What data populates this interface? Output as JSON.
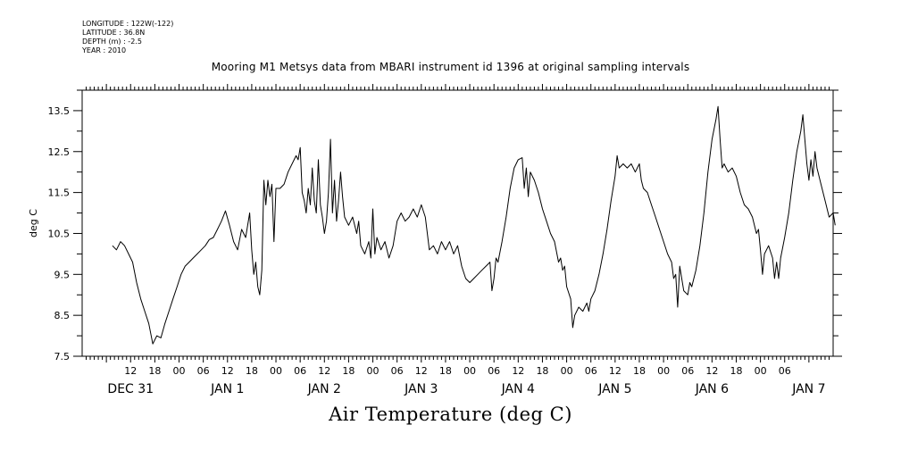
{
  "header": {
    "longitude": "LONGITUDE : 122W(-122)",
    "latitude": "LATITUDE : 36.8N",
    "depth": "DEPTH (m) : -2.5",
    "year": "YEAR : 2010"
  },
  "chart_data": {
    "type": "line",
    "title": "Mooring M1 Metsys data from MBARI instrument id 1396 at original sampling intervals",
    "ylabel": "deg C",
    "xlabel": "",
    "footer_title": "Air Temperature (deg C)",
    "ylim": [
      7.5,
      14.0
    ],
    "yticks": [
      "7.5",
      "8.5",
      "9.5",
      "10.5",
      "11.5",
      "12.5",
      "13.5"
    ],
    "xlim_hours": [
      6,
      174
    ],
    "xtick_labels": [
      "12",
      "18",
      "00",
      "06",
      "12",
      "18",
      "00",
      "06",
      "12",
      "18",
      "00",
      "06",
      "12",
      "18",
      "00",
      "06",
      "12",
      "18",
      "00",
      "06",
      "12",
      "18",
      "00",
      "06",
      "12",
      "18",
      "00",
      "06"
    ],
    "day_labels": [
      "DEC 31",
      "JAN 1",
      "JAN 2",
      "JAN 3",
      "JAN 4",
      "JAN 5",
      "JAN 6",
      "JAN 7"
    ],
    "grid": false,
    "series": [
      {
        "points": [
          [
            7.5,
            10.2
          ],
          [
            8.5,
            10.1
          ],
          [
            9.5,
            10.3
          ],
          [
            10.5,
            10.2
          ],
          [
            11.5,
            10.0
          ],
          [
            12.5,
            9.8
          ],
          [
            13.5,
            9.3
          ],
          [
            14.5,
            8.9
          ],
          [
            15.5,
            8.6
          ],
          [
            16.5,
            8.3
          ],
          [
            17.5,
            7.8
          ],
          [
            18.5,
            8.0
          ],
          [
            19.5,
            7.95
          ],
          [
            20.5,
            8.3
          ],
          [
            21.5,
            8.6
          ],
          [
            22.5,
            8.9
          ],
          [
            23.5,
            9.2
          ],
          [
            24.5,
            9.5
          ],
          [
            25.5,
            9.7
          ],
          [
            26.5,
            9.8
          ],
          [
            27.5,
            9.9
          ],
          [
            28.5,
            10.0
          ],
          [
            29.5,
            10.1
          ],
          [
            30.5,
            10.2
          ],
          [
            31.5,
            10.35
          ],
          [
            32.5,
            10.4
          ],
          [
            33.5,
            10.6
          ],
          [
            34.5,
            10.8
          ],
          [
            35.5,
            11.05
          ],
          [
            36.5,
            10.7
          ],
          [
            37.5,
            10.3
          ],
          [
            38.5,
            10.1
          ],
          [
            39.5,
            10.6
          ],
          [
            40.5,
            10.4
          ],
          [
            41.5,
            11.0
          ],
          [
            42.0,
            10.1
          ],
          [
            42.5,
            9.5
          ],
          [
            43.0,
            9.8
          ],
          [
            43.5,
            9.2
          ],
          [
            44.0,
            9.0
          ],
          [
            44.5,
            9.6
          ],
          [
            45.0,
            11.8
          ],
          [
            45.5,
            11.2
          ],
          [
            46.0,
            11.8
          ],
          [
            46.5,
            11.4
          ],
          [
            47.0,
            11.7
          ],
          [
            47.5,
            10.3
          ],
          [
            48.0,
            11.6
          ],
          [
            49.0,
            11.6
          ],
          [
            50.0,
            11.7
          ],
          [
            51.0,
            12.0
          ],
          [
            52.0,
            12.2
          ],
          [
            53.0,
            12.4
          ],
          [
            53.5,
            12.3
          ],
          [
            54.0,
            12.6
          ],
          [
            54.5,
            11.5
          ],
          [
            55.0,
            11.3
          ],
          [
            55.5,
            11.0
          ],
          [
            56.0,
            11.6
          ],
          [
            56.5,
            11.2
          ],
          [
            57.0,
            12.1
          ],
          [
            57.5,
            11.3
          ],
          [
            58.0,
            11.0
          ],
          [
            58.5,
            12.3
          ],
          [
            59.0,
            11.2
          ],
          [
            59.5,
            10.9
          ],
          [
            60.0,
            10.5
          ],
          [
            60.5,
            10.8
          ],
          [
            61.0,
            11.5
          ],
          [
            61.5,
            12.8
          ],
          [
            62.0,
            11.0
          ],
          [
            62.5,
            11.8
          ],
          [
            63.0,
            10.8
          ],
          [
            63.5,
            11.3
          ],
          [
            64.0,
            12.0
          ],
          [
            64.5,
            11.4
          ],
          [
            65.0,
            10.9
          ],
          [
            66.0,
            10.7
          ],
          [
            67.0,
            10.9
          ],
          [
            68.0,
            10.5
          ],
          [
            68.5,
            10.8
          ],
          [
            69.0,
            10.2
          ],
          [
            70.0,
            10.0
          ],
          [
            71.0,
            10.3
          ],
          [
            71.5,
            9.9
          ],
          [
            72.0,
            11.1
          ],
          [
            72.5,
            10.0
          ],
          [
            73.0,
            10.4
          ],
          [
            74.0,
            10.1
          ],
          [
            75.0,
            10.3
          ],
          [
            76.0,
            9.9
          ],
          [
            77.0,
            10.2
          ],
          [
            78.0,
            10.8
          ],
          [
            79.0,
            11.0
          ],
          [
            80.0,
            10.8
          ],
          [
            81.0,
            10.9
          ],
          [
            82.0,
            11.1
          ],
          [
            83.0,
            10.9
          ],
          [
            84.0,
            11.2
          ],
          [
            85.0,
            10.9
          ],
          [
            86.0,
            10.1
          ],
          [
            87.0,
            10.2
          ],
          [
            88.0,
            10.0
          ],
          [
            89.0,
            10.3
          ],
          [
            90.0,
            10.1
          ],
          [
            91.0,
            10.3
          ],
          [
            92.0,
            10.0
          ],
          [
            93.0,
            10.2
          ],
          [
            94.0,
            9.7
          ],
          [
            95.0,
            9.4
          ],
          [
            96.0,
            9.3
          ],
          [
            97.0,
            9.4
          ],
          [
            98.0,
            9.5
          ],
          [
            99.0,
            9.6
          ],
          [
            100.0,
            9.7
          ],
          [
            101.0,
            9.8
          ],
          [
            101.5,
            9.1
          ],
          [
            102.0,
            9.4
          ],
          [
            102.5,
            9.9
          ],
          [
            103.0,
            9.8
          ],
          [
            104.0,
            10.3
          ],
          [
            105.0,
            10.9
          ],
          [
            106.0,
            11.6
          ],
          [
            107.0,
            12.1
          ],
          [
            108.0,
            12.3
          ],
          [
            109.0,
            12.35
          ],
          [
            109.5,
            11.6
          ],
          [
            110.0,
            12.1
          ],
          [
            110.5,
            11.4
          ],
          [
            111.0,
            12.0
          ],
          [
            112.0,
            11.8
          ],
          [
            113.0,
            11.5
          ],
          [
            114.0,
            11.1
          ],
          [
            115.0,
            10.8
          ],
          [
            116.0,
            10.5
          ],
          [
            117.0,
            10.3
          ],
          [
            118.0,
            9.8
          ],
          [
            118.5,
            9.9
          ],
          [
            119.0,
            9.6
          ],
          [
            119.5,
            9.7
          ],
          [
            120.0,
            9.2
          ],
          [
            121.0,
            8.9
          ],
          [
            121.5,
            8.2
          ],
          [
            122.0,
            8.5
          ],
          [
            123.0,
            8.7
          ],
          [
            124.0,
            8.6
          ],
          [
            125.0,
            8.8
          ],
          [
            125.5,
            8.6
          ],
          [
            126.0,
            8.9
          ],
          [
            127.0,
            9.1
          ],
          [
            128.0,
            9.5
          ],
          [
            129.0,
            10.0
          ],
          [
            130.0,
            10.6
          ],
          [
            131.0,
            11.3
          ],
          [
            132.0,
            11.9
          ],
          [
            132.5,
            12.4
          ],
          [
            133.0,
            12.1
          ],
          [
            134.0,
            12.2
          ],
          [
            135.0,
            12.1
          ],
          [
            136.0,
            12.2
          ],
          [
            137.0,
            12.0
          ],
          [
            138.0,
            12.2
          ],
          [
            138.5,
            11.8
          ],
          [
            139.0,
            11.6
          ],
          [
            140.0,
            11.5
          ],
          [
            141.0,
            11.2
          ],
          [
            142.0,
            10.9
          ],
          [
            143.0,
            10.6
          ],
          [
            144.0,
            10.3
          ],
          [
            145.0,
            10.0
          ],
          [
            146.0,
            9.8
          ],
          [
            146.5,
            9.4
          ],
          [
            147.0,
            9.5
          ],
          [
            147.5,
            8.7
          ],
          [
            148.0,
            9.7
          ],
          [
            149.0,
            9.1
          ],
          [
            150.0,
            9.0
          ],
          [
            150.5,
            9.3
          ],
          [
            151.0,
            9.2
          ],
          [
            152.0,
            9.6
          ],
          [
            153.0,
            10.2
          ],
          [
            154.0,
            11.0
          ],
          [
            155.0,
            12.0
          ],
          [
            156.0,
            12.8
          ],
          [
            157.0,
            13.3
          ],
          [
            157.5,
            13.6
          ],
          [
            158.0,
            12.8
          ],
          [
            158.5,
            12.1
          ],
          [
            159.0,
            12.2
          ],
          [
            160.0,
            12.0
          ],
          [
            161.0,
            12.1
          ],
          [
            162.0,
            11.9
          ],
          [
            163.0,
            11.5
          ],
          [
            164.0,
            11.2
          ],
          [
            165.0,
            11.1
          ],
          [
            166.0,
            10.9
          ],
          [
            167.0,
            10.5
          ],
          [
            167.5,
            10.6
          ],
          [
            168.0,
            10.1
          ],
          [
            168.5,
            9.5
          ],
          [
            169.0,
            10.0
          ],
          [
            170.0,
            10.2
          ],
          [
            171.0,
            9.9
          ],
          [
            171.5,
            9.4
          ],
          [
            172.0,
            9.8
          ],
          [
            172.5,
            9.4
          ],
          [
            173.0,
            9.9
          ],
          [
            174.0,
            10.4
          ],
          [
            175.0,
            11.0
          ],
          [
            176.0,
            11.8
          ],
          [
            177.0,
            12.5
          ],
          [
            178.0,
            13.0
          ],
          [
            178.5,
            13.4
          ],
          [
            179.0,
            12.8
          ],
          [
            179.5,
            12.2
          ],
          [
            180.0,
            11.8
          ],
          [
            180.5,
            12.3
          ],
          [
            181.0,
            11.9
          ],
          [
            181.5,
            12.5
          ],
          [
            182.0,
            12.1
          ],
          [
            183.0,
            11.7
          ],
          [
            184.0,
            11.3
          ],
          [
            185.0,
            10.9
          ],
          [
            186.0,
            11.0
          ],
          [
            186.5,
            10.7
          ]
        ]
      }
    ]
  }
}
